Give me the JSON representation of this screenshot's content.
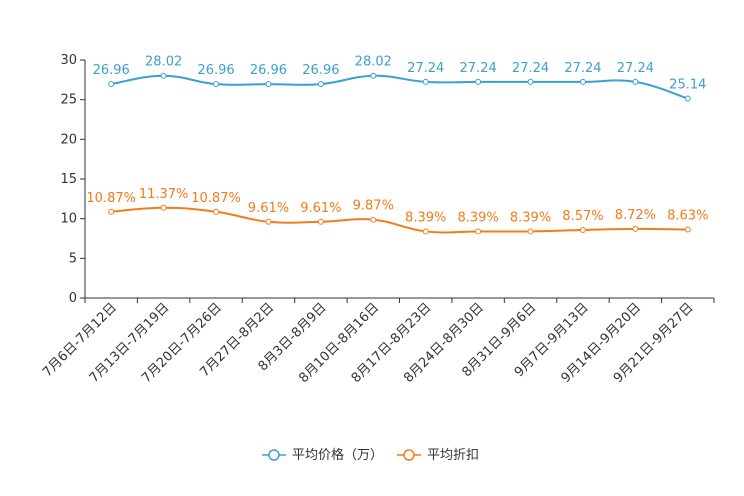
{
  "chart_data": {
    "type": "line",
    "title": "",
    "xlabel": "",
    "ylabel": "",
    "ylim": [
      0,
      30
    ],
    "yticks": [
      0,
      5,
      10,
      15,
      20,
      25,
      30
    ],
    "categories": [
      "7月6日-7月12日",
      "7月13日-7月19日",
      "7月20日-7月26日",
      "7月27日-8月2日",
      "8月3日-8月9日",
      "8月10日-8月16日",
      "8月17日-8月23日",
      "8月24日-8月30日",
      "8月31日-9月6日",
      "9月7日-9月13日",
      "9月14日-9月20日",
      "9月21日-9月27日"
    ],
    "series": [
      {
        "name": "平均价格（万）",
        "color": "#3c9fd1",
        "values": [
          26.96,
          28.02,
          26.96,
          26.96,
          26.96,
          28.02,
          27.24,
          27.24,
          27.24,
          27.24,
          27.24,
          25.14
        ],
        "labels": [
          "26.96",
          "28.02",
          "26.96",
          "26.96",
          "26.96",
          "28.02",
          "27.24",
          "27.24",
          "27.24",
          "27.24",
          "27.24",
          "25.14"
        ]
      },
      {
        "name": "平均折扣",
        "color": "#f27c1a",
        "values": [
          10.87,
          11.37,
          10.87,
          9.61,
          9.61,
          9.87,
          8.39,
          8.39,
          8.39,
          8.57,
          8.72,
          8.63
        ],
        "labels": [
          "10.87%",
          "11.37%",
          "10.87%",
          "9.61%",
          "9.61%",
          "9.87%",
          "8.39%",
          "8.39%",
          "8.39%",
          "8.57%",
          "8.72%",
          "8.63%"
        ]
      }
    ],
    "legend_position": "bottom-center"
  }
}
